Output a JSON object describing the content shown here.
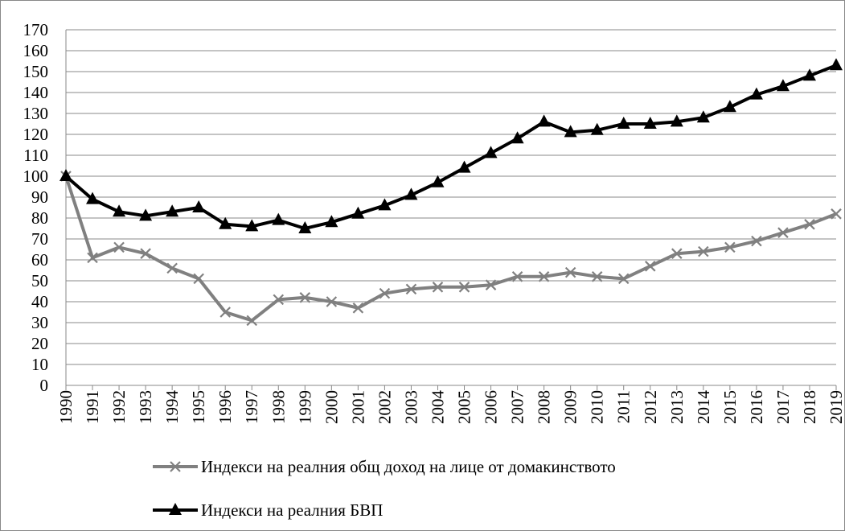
{
  "chart_data": {
    "type": "line",
    "categories": [
      "1990",
      "1991",
      "1992",
      "1993",
      "1994",
      "1995",
      "1996",
      "1997",
      "1998",
      "1999",
      "2000",
      "2001",
      "2002",
      "2003",
      "2004",
      "2005",
      "2006",
      "2007",
      "2008",
      "2009",
      "2010",
      "2011",
      "2012",
      "2013",
      "2014",
      "2015",
      "2016",
      "2017",
      "2018",
      "2019"
    ],
    "series": [
      {
        "name": "Индекси на реалния общ доход на лице от домакинството",
        "color": "#808080",
        "marker": "x",
        "values": [
          100,
          61,
          66,
          63,
          56,
          51,
          35,
          31,
          41,
          42,
          40,
          37,
          44,
          46,
          47,
          47,
          48,
          52,
          52,
          54,
          52,
          51,
          57,
          63,
          64,
          66,
          69,
          73,
          77,
          82
        ]
      },
      {
        "name": "Индекси на реалния БВП",
        "color": "#000000",
        "marker": "triangle",
        "values": [
          100,
          89,
          83,
          81,
          83,
          85,
          77,
          76,
          79,
          75,
          78,
          82,
          86,
          91,
          97,
          104,
          111,
          118,
          126,
          121,
          122,
          125,
          125,
          126,
          128,
          133,
          139,
          143,
          148,
          153
        ]
      }
    ],
    "ylim": [
      0,
      170
    ],
    "yticks": [
      0,
      10,
      20,
      30,
      40,
      50,
      60,
      70,
      80,
      90,
      100,
      110,
      120,
      130,
      140,
      150,
      160,
      170
    ],
    "grid": true,
    "legend": "bottom"
  }
}
